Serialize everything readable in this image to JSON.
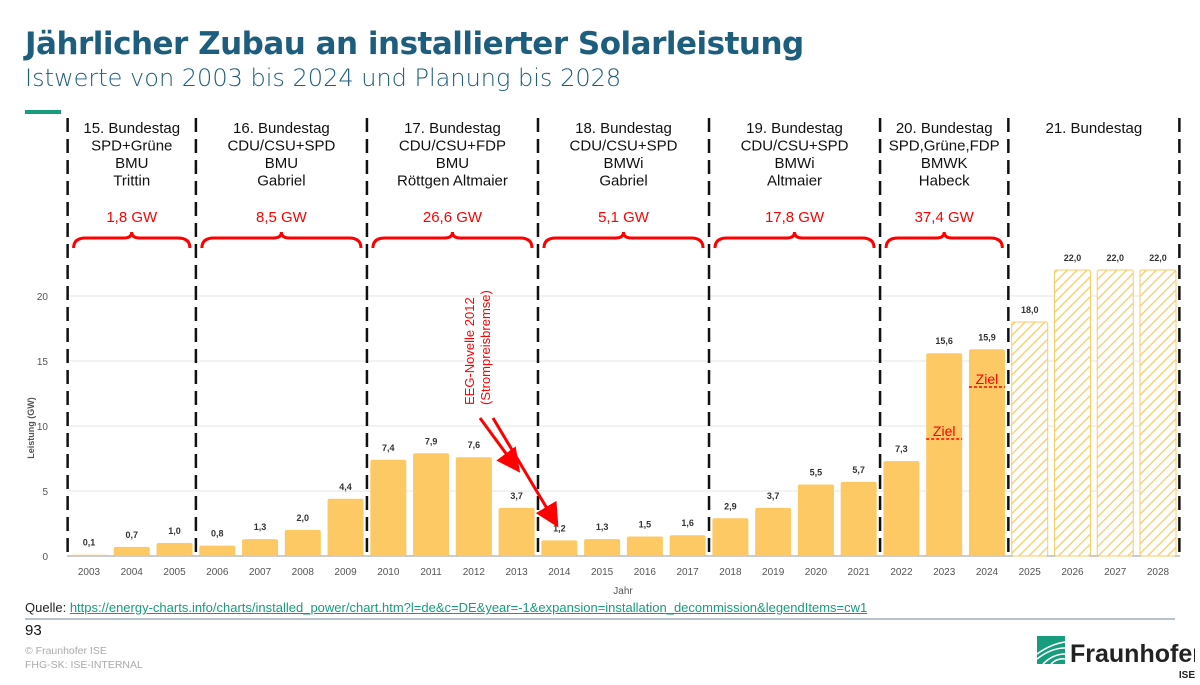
{
  "header": {
    "title": "Jährlicher Zubau an installierter Solarleistung",
    "subtitle": "Istwerte von 2003 bis 2024 und Planung bis 2028"
  },
  "footer": {
    "source_label": "Quelle:",
    "source_link": "https://energy-charts.info/charts/installed_power/chart.htm?l=de&c=DE&year=-1&expansion=installation_decommission&legendItems=cw1",
    "page_number": "93",
    "copyright": "© Fraunhofer ISE",
    "classification": "FHG-SK: ISE-INTERNAL",
    "logo_text": "Fraunhofer",
    "logo_sub": "ISE"
  },
  "chart_data": {
    "type": "bar",
    "title": "",
    "xlabel": "Jahr",
    "ylabel": "Leistung (GW)",
    "ylim": [
      0,
      25
    ],
    "yticks": [
      0,
      5,
      10,
      15,
      20
    ],
    "grid": true,
    "categories": [
      "2003",
      "2004",
      "2005",
      "2006",
      "2007",
      "2008",
      "2009",
      "2010",
      "2011",
      "2012",
      "2013",
      "2014",
      "2015",
      "2016",
      "2017",
      "2018",
      "2019",
      "2020",
      "2021",
      "2022",
      "2023",
      "2024",
      "2025",
      "2026",
      "2027",
      "2028"
    ],
    "values": [
      0.1,
      0.7,
      1.0,
      0.8,
      1.3,
      2.0,
      4.4,
      7.4,
      7.9,
      7.6,
      3.7,
      1.2,
      1.3,
      1.5,
      1.6,
      2.9,
      3.7,
      5.5,
      5.7,
      7.3,
      15.6,
      15.9,
      18.0,
      22.0,
      22.0,
      22.0
    ],
    "labels": [
      "0,1",
      "0,7",
      "1,0",
      "0,8",
      "1,3",
      "2,0",
      "4,4",
      "7,4",
      "7,9",
      "7,6",
      "3,7",
      "1,2",
      "1,3",
      "1,5",
      "1,6",
      "2,9",
      "3,7",
      "5,5",
      "5,7",
      "7,3",
      "15,6",
      "15,9",
      "18,0",
      "22,0",
      "22,0",
      "22,0"
    ],
    "planned_from": "2025",
    "colors": {
      "actual": "#fdc964",
      "planned_hatch": "#fdc964",
      "annotation": "#ff0000"
    },
    "targets": [
      {
        "year": "2023",
        "value": 9,
        "label": "Ziel"
      },
      {
        "year": "2024",
        "value": 13,
        "label": "Ziel"
      }
    ],
    "periods": [
      {
        "start": "2003",
        "end": "2005",
        "lines": [
          "15. Bundestag",
          "SPD+Grüne",
          "BMU",
          "Trittin"
        ],
        "total": "1,8 GW"
      },
      {
        "start": "2006",
        "end": "2009",
        "lines": [
          "16. Bundestag",
          "CDU/CSU+SPD",
          "BMU",
          "Gabriel"
        ],
        "total": "8,5 GW"
      },
      {
        "start": "2010",
        "end": "2013",
        "lines": [
          "17. Bundestag",
          "CDU/CSU+FDP",
          "BMU",
          "Röttgen    Altmaier"
        ],
        "total": "26,6 GW"
      },
      {
        "start": "2014",
        "end": "2017",
        "lines": [
          "18. Bundestag",
          "CDU/CSU+SPD",
          "BMWi",
          "Gabriel"
        ],
        "total": "5,1 GW"
      },
      {
        "start": "2018",
        "end": "2021",
        "lines": [
          "19. Bundestag",
          "CDU/CSU+SPD",
          "BMWi",
          "Altmaier"
        ],
        "total": "17,8 GW"
      },
      {
        "start": "2022",
        "end": "2024",
        "lines": [
          "20. Bundestag",
          "SPD,Grüne,FDP",
          "BMWK",
          "Habeck"
        ],
        "total": "37,4 GW"
      },
      {
        "start": "2025",
        "end": "2028",
        "lines": [
          "21. Bundestag"
        ],
        "total": ""
      }
    ],
    "annotation": {
      "lines": [
        "EEG-Novelle 2012",
        "(Strompreisbremse)"
      ],
      "arrows_to": [
        "2013",
        "2014"
      ]
    }
  }
}
